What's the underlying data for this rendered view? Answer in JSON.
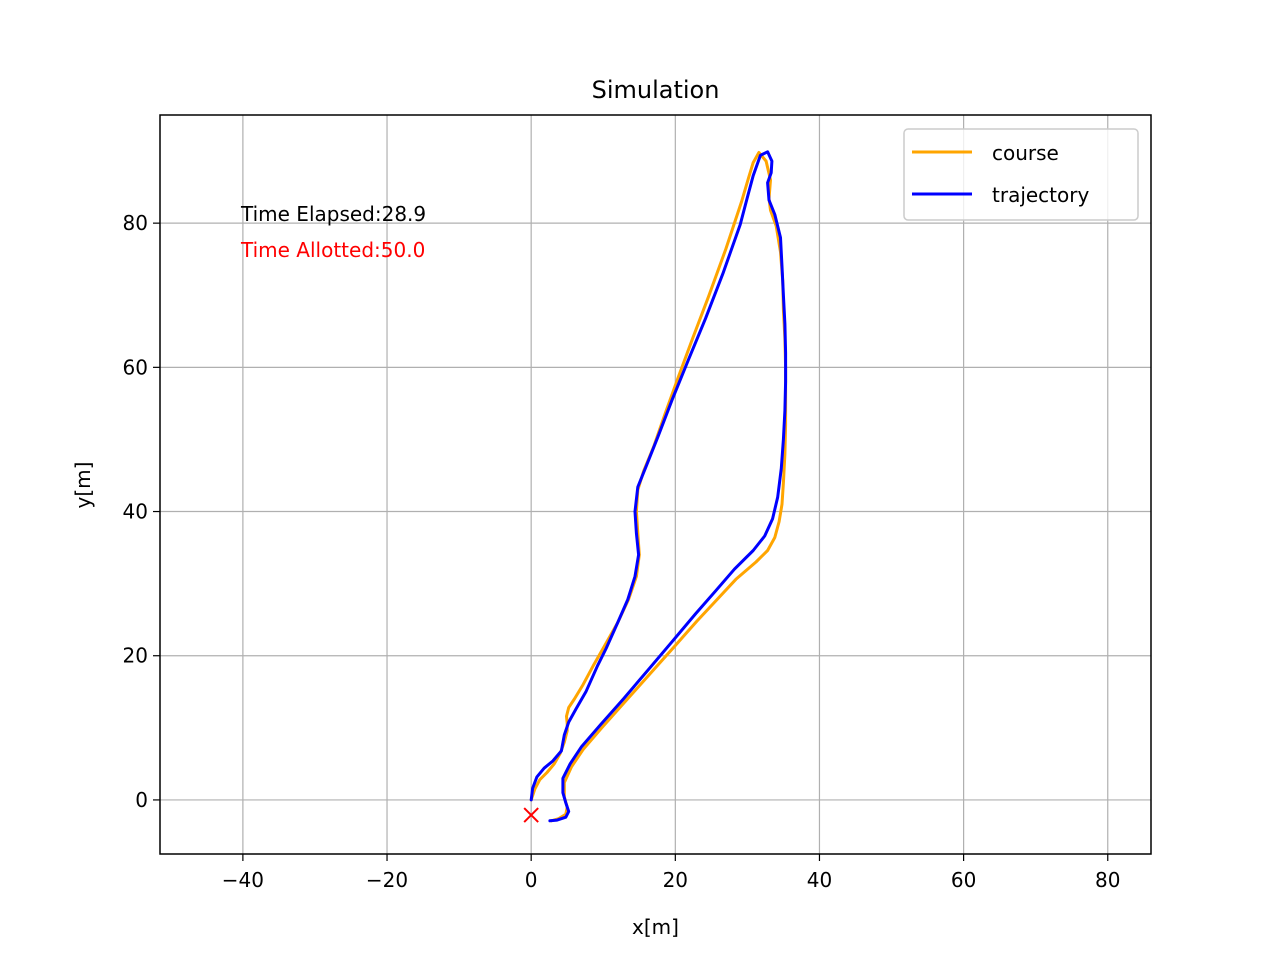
{
  "chart_data": {
    "type": "line",
    "title": "Simulation",
    "xlabel": "x[m]",
    "ylabel": "y[m]",
    "xlim": [
      -51.5,
      86
    ],
    "ylim": [
      -7.5,
      95
    ],
    "x_ticks": [
      -40,
      -20,
      0,
      20,
      40,
      60,
      80
    ],
    "x_tick_labels": [
      "−40",
      "−20",
      "0",
      "20",
      "40",
      "60",
      "80"
    ],
    "y_ticks": [
      0,
      20,
      40,
      60,
      80
    ],
    "y_tick_labels": [
      "0",
      "20",
      "40",
      "60",
      "80"
    ],
    "grid": true,
    "legend_position": "upper-right",
    "annotations": {
      "time_elapsed": "Time Elapsed:28.9",
      "time_allotted": "Time Allotted:50.0",
      "time_elapsed_color": "#000000",
      "time_allotted_color": "#ff0000"
    },
    "marker": {
      "symbol": "x",
      "x": 0,
      "y": -2.1,
      "color": "#ff0000"
    },
    "series": [
      {
        "name": "course",
        "color": "#ffa500",
        "x": [
          0,
          0.5,
          1.2,
          2.2,
          3.2,
          4.0,
          4.6,
          5.0,
          5.0,
          4.9,
          5.2,
          6.0,
          7.2,
          8.6,
          10.2,
          12.0,
          13.5,
          14.6,
          15.0,
          14.8,
          14.6,
          14.8,
          15.6,
          17.0,
          18.6,
          20.4,
          22.4,
          24.6,
          27.0,
          29.2,
          30.2,
          30.8,
          31.6,
          32.6,
          33.2,
          33.0,
          33.2,
          34.0,
          34.6,
          34.9,
          35.0,
          35.2,
          35.3,
          35.3,
          35.3,
          35.2,
          35.0,
          34.8,
          34.4,
          33.8,
          32.8,
          31.2,
          28.4,
          25.8,
          23.0,
          19.8,
          16.4,
          13.0,
          9.8,
          7.2,
          5.6,
          4.6,
          4.6,
          5.0,
          4.8,
          3.8,
          2.8
        ],
        "y": [
          0,
          1.5,
          2.8,
          3.8,
          5.0,
          6.4,
          8.0,
          9.6,
          10.6,
          11.6,
          12.8,
          14.0,
          16.0,
          18.6,
          21.4,
          24.6,
          27.8,
          31.0,
          34.0,
          37.0,
          40.0,
          43.0,
          45.6,
          49.0,
          53.6,
          58.6,
          64.0,
          69.8,
          76.4,
          83.0,
          86.4,
          88.4,
          89.8,
          88.6,
          86.0,
          83.4,
          81.8,
          79.6,
          76.0,
          72.0,
          68.0,
          64.0,
          60.0,
          56.0,
          52.0,
          48.0,
          44.0,
          41.0,
          38.6,
          36.4,
          34.6,
          33.0,
          30.6,
          27.8,
          24.8,
          21.2,
          17.4,
          13.6,
          10.0,
          7.0,
          4.6,
          2.4,
          0.4,
          -1.0,
          -2.0,
          -2.6,
          -2.9
        ]
      },
      {
        "name": "trajectory",
        "color": "#0000ff",
        "x": [
          0,
          0.2,
          0.8,
          1.8,
          3.0,
          4.2,
          4.6,
          5.2,
          6.2,
          7.6,
          9.2,
          10.4,
          12.0,
          13.4,
          14.4,
          14.9,
          14.6,
          14.4,
          14.8,
          16.0,
          17.6,
          19.6,
          21.8,
          24.2,
          26.6,
          29.0,
          30.0,
          30.8,
          31.8,
          32.8,
          33.4,
          33.3,
          32.8,
          33.0,
          33.8,
          34.6,
          34.8,
          35.0,
          35.2,
          35.3,
          35.3,
          35.2,
          35.0,
          34.7,
          34.2,
          33.5,
          32.4,
          30.8,
          28.2,
          25.6,
          22.8,
          19.6,
          16.2,
          12.8,
          9.6,
          7.0,
          5.4,
          4.4,
          4.4,
          4.8,
          5.2,
          4.8,
          3.6,
          2.6
        ],
        "y": [
          0,
          1.6,
          3.2,
          4.4,
          5.4,
          6.8,
          9.0,
          10.8,
          12.6,
          15.0,
          18.6,
          21.0,
          24.6,
          27.8,
          31.0,
          34.0,
          37.0,
          40.0,
          43.4,
          46.4,
          50.4,
          55.6,
          61.0,
          66.8,
          73.0,
          79.8,
          83.6,
          86.6,
          89.4,
          89.9,
          88.6,
          87.0,
          85.6,
          83.2,
          81.2,
          78.0,
          74.0,
          70.0,
          66.0,
          62.0,
          58.0,
          54.0,
          50.0,
          46.0,
          42.0,
          39.0,
          36.6,
          34.6,
          32.0,
          29.0,
          25.8,
          22.0,
          18.0,
          14.0,
          10.4,
          7.4,
          5.0,
          3.0,
          1.0,
          -0.4,
          -1.6,
          -2.4,
          -2.8,
          -2.9
        ]
      }
    ]
  }
}
